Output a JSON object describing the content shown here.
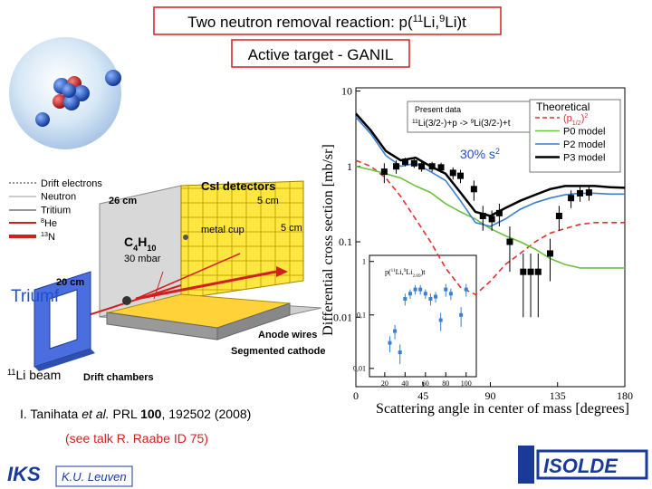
{
  "slide": {
    "title": [
      "Two neutron removal reaction: p(",
      "11",
      "Li,",
      "9",
      "Li)t"
    ],
    "subtitle": "Active target - GANIL",
    "lab": "Triumf",
    "beam": [
      "11",
      "Li beam"
    ],
    "citation": [
      "I. Tanihata ",
      "et al.",
      " PRL ",
      "100",
      ", 192502 (2008)"
    ],
    "talk": "(see talk R. Raabe ID 75)",
    "affiliation": "K.U. Leuven",
    "logo_left": "IKS",
    "logo_right": "ISOLDE"
  },
  "diagram": {
    "legend_items": [
      [
        "Drift electrons"
      ],
      [
        "Neutron"
      ],
      [
        "Tritium"
      ],
      [
        "8",
        "He"
      ],
      [
        "13",
        "N"
      ]
    ],
    "detector": "CsI detectors",
    "length": "26 cm",
    "cell_width": "5 cm",
    "cell_height": "5 cm",
    "cup": "metal cup",
    "gas": [
      "C",
      "4",
      "H",
      "10"
    ],
    "pressure": "30 mbar",
    "height": "20 cm",
    "anode": "Anode wires",
    "cathode": "Segmented cathode",
    "chambers": "Drift chambers"
  },
  "chart_data": [
    {
      "type": "line",
      "ylabel": "Differential cross section [mb/sr]",
      "xlabel": "Scattering angle in center of mass [degrees]",
      "annotation": [
        "30% s",
        "2"
      ],
      "data_note": [
        "11",
        "Li(3/2-)+p -> ",
        "9",
        "Li(3/2-)+t"
      ],
      "theory_title": "Theoretical",
      "ylog": true,
      "xlim": [
        0,
        180
      ],
      "xticks": [
        0,
        45,
        90,
        135,
        180
      ],
      "ylim": [
        0.0012,
        11
      ],
      "yticks": [
        0.01,
        0.1,
        1,
        10
      ],
      "x": [
        0,
        10,
        20,
        30,
        40,
        50,
        60,
        70,
        80,
        90,
        100,
        110,
        120,
        130,
        140,
        150,
        160,
        170,
        180
      ],
      "points": {
        "name": "Present data",
        "color": "#000000",
        "x": [
          19,
          27,
          33,
          39,
          44,
          51,
          57,
          65,
          70,
          79,
          85,
          91,
          96,
          103,
          112,
          117,
          122,
          130,
          136,
          144,
          150,
          156
        ],
        "values": [
          0.85,
          1.0,
          1.15,
          1.1,
          1.0,
          1.0,
          0.97,
          0.82,
          0.75,
          0.5,
          0.22,
          0.2,
          0.24,
          0.1,
          0.04,
          0.04,
          0.04,
          0.07,
          0.22,
          0.38,
          0.44,
          0.45
        ],
        "errors": [
          0.25,
          0.2,
          0.15,
          0.15,
          0.15,
          0.15,
          0.15,
          0.15,
          0.15,
          0.15,
          0.08,
          0.06,
          0.08,
          0.06,
          0.03,
          0.03,
          0.03,
          0.04,
          0.08,
          0.1,
          0.1,
          0.1
        ]
      },
      "series": [
        {
          "name": [
            "(p",
            "1/2",
            ")",
            "2"
          ],
          "color": "#e03030",
          "dashed": true,
          "values": [
            1.2,
            1.0,
            0.7,
            0.4,
            0.2,
            0.1,
            0.045,
            0.025,
            0.02,
            0.03,
            0.05,
            0.07,
            0.1,
            0.13,
            0.15,
            0.17,
            0.18,
            0.18,
            0.18
          ]
        },
        {
          "name": [
            "P0 model"
          ],
          "color": "#6dc040",
          "values": [
            1.0,
            0.9,
            0.8,
            0.7,
            0.55,
            0.45,
            0.32,
            0.25,
            0.2,
            0.15,
            0.12,
            0.1,
            0.08,
            0.06,
            0.05,
            0.045,
            0.045,
            0.045,
            0.045
          ]
        },
        {
          "name": [
            "P2 model"
          ],
          "color": "#3a7fd0",
          "values": [
            4.5,
            2.7,
            1.4,
            1.0,
            1.1,
            0.85,
            0.65,
            0.35,
            0.18,
            0.16,
            0.2,
            0.27,
            0.33,
            0.38,
            0.42,
            0.44,
            0.44,
            0.43,
            0.43
          ]
        },
        {
          "name": [
            "P3 model"
          ],
          "color": "#000000",
          "values": [
            5,
            3,
            1.6,
            1.2,
            1.3,
            1.0,
            0.8,
            0.45,
            0.25,
            0.22,
            0.28,
            0.35,
            0.42,
            0.5,
            0.55,
            0.55,
            0.55,
            0.53,
            0.52
          ]
        }
      ]
    },
    {
      "type": "scatter",
      "title": [
        "p(",
        "11",
        "Li,",
        "9",
        "Li",
        "2.69",
        ")t"
      ],
      "ylog": true,
      "xlim": [
        5,
        110
      ],
      "xticks": [
        20,
        40,
        60,
        80,
        100
      ],
      "ylim": [
        0.007,
        1.3
      ],
      "yticks": [
        1,
        {
          "value": 0.1,
          "label": "0,1"
        },
        {
          "value": 0.01,
          "label": "0,01"
        }
      ],
      "points": {
        "color": "#3a7fd0",
        "x": [
          25,
          30,
          35,
          40,
          45,
          50,
          55,
          60,
          65,
          70,
          75,
          80,
          85,
          95,
          100
        ],
        "values": [
          0.03,
          0.05,
          0.02,
          0.2,
          0.25,
          0.3,
          0.3,
          0.25,
          0.2,
          0.22,
          0.08,
          0.3,
          0.25,
          0.1,
          0.3
        ],
        "errors": [
          0.01,
          0.015,
          0.008,
          0.05,
          0.05,
          0.06,
          0.06,
          0.05,
          0.05,
          0.05,
          0.03,
          0.08,
          0.06,
          0.04,
          0.08
        ]
      }
    }
  ]
}
